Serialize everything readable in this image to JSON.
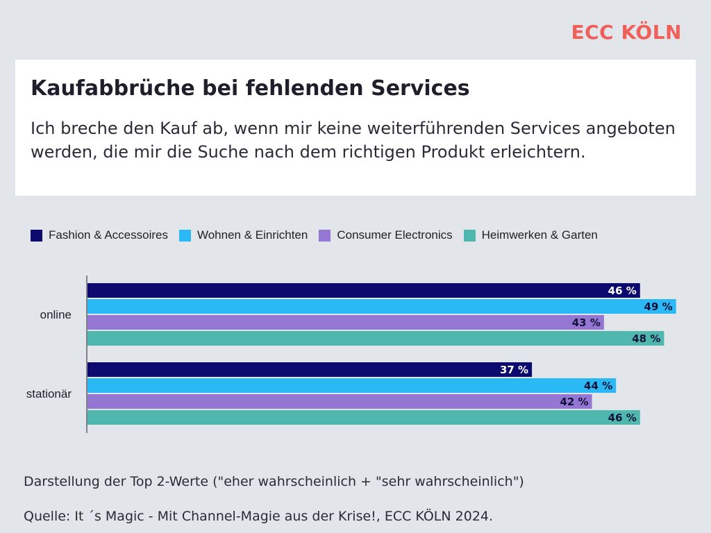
{
  "brand": {
    "logo_text": "ECC KÖLN",
    "logo_color": "#f0605a"
  },
  "header": {
    "title": "Kaufabbrüche bei fehlenden Services",
    "subtitle": "Ich breche den Kauf ab, wenn mir keine weiterführenden Services angeboten werden, die mir die Suche nach dem richtigen Produkt erleichtern."
  },
  "chart_data": {
    "type": "bar",
    "orientation": "horizontal",
    "title": "Kaufabbrüche bei fehlenden Services",
    "xlabel": "",
    "ylabel": "",
    "xlim": [
      0,
      50
    ],
    "value_suffix": " %",
    "legend_position": "top",
    "categories": [
      "online",
      "stationär"
    ],
    "series": [
      {
        "name": "Fashion & Accessoires",
        "color": "#0c0a6e",
        "label_color": "#ffffff",
        "values": [
          46,
          37
        ]
      },
      {
        "name": "Wohnen & Einrichten",
        "color": "#2bb9f5",
        "label_color": "#12123a",
        "values": [
          49,
          44
        ]
      },
      {
        "name": "Consumer Electronics",
        "color": "#9476d3",
        "label_color": "#12123a",
        "values": [
          43,
          42
        ]
      },
      {
        "name": "Heimwerken & Garten",
        "color": "#4fb7ae",
        "label_color": "#12123a",
        "values": [
          48,
          46
        ]
      }
    ]
  },
  "footer": {
    "note": "Darstellung der Top 2-Werte (\"eher wahrscheinlich + \"sehr wahrscheinlich\")",
    "source": "Quelle: It ´s Magic - Mit Channel-Magie aus der Krise!, ECC KÖLN 2024."
  }
}
